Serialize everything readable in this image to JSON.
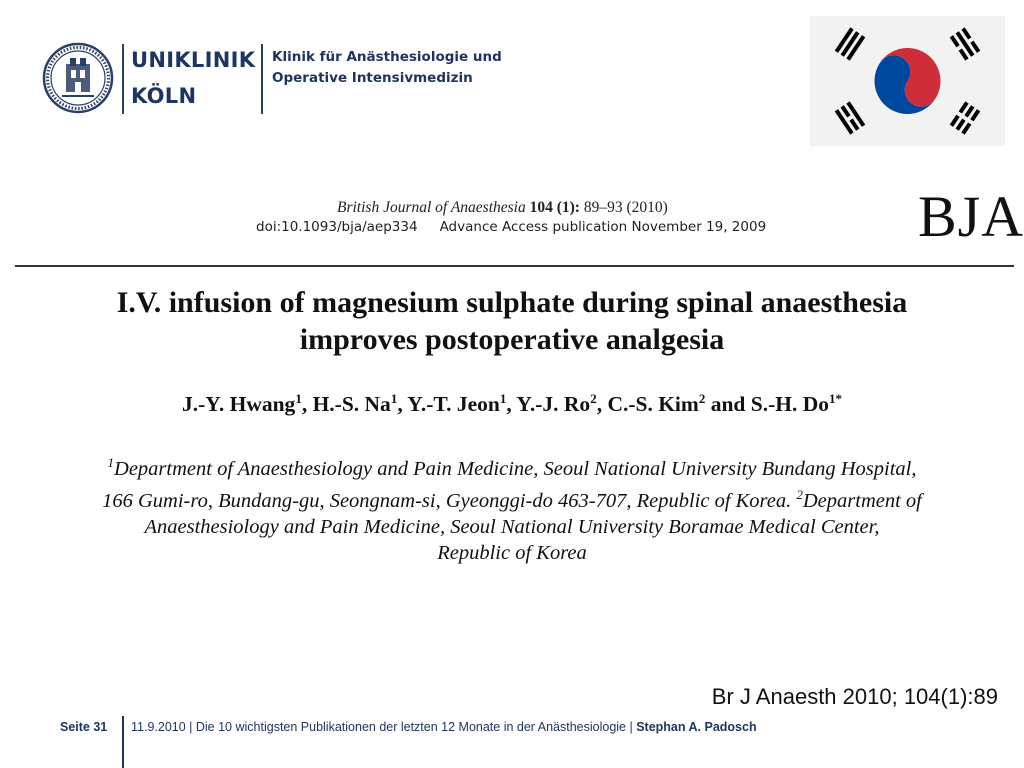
{
  "header": {
    "logo_line1": "UNIKLINIK",
    "logo_line2": "KÖLN",
    "clinic_line1": "Klinik für Anästhesiologie und",
    "clinic_line2": "Operative Intensivmedizin",
    "seal_icon": "university-seal-icon",
    "flag_icon": "south-korea-flag-icon"
  },
  "paper": {
    "journal_name": "British Journal of Anaesthesia",
    "journal_volume": "104 (1):",
    "journal_pages": "89–93 (2010)",
    "doi": "doi:10.1093/bja/aep334",
    "advance_access": "Advance Access publication November 19, 2009",
    "journal_logo": "BJA",
    "title_line1": "I.V. infusion of magnesium sulphate during spinal anaesthesia",
    "title_line2": "improves postoperative analgesia",
    "authors": [
      {
        "name": "J.-Y. Hwang",
        "sup": "1",
        "sep": ", "
      },
      {
        "name": "H.-S. Na",
        "sup": "1",
        "sep": ", "
      },
      {
        "name": "Y.-T. Jeon",
        "sup": "1",
        "sep": ", "
      },
      {
        "name": "Y.-J. Ro",
        "sup": "2",
        "sep": ", "
      },
      {
        "name": "C.-S. Kim",
        "sup": "2",
        "sep": " and "
      },
      {
        "name": "S.-H. Do",
        "sup": "1*",
        "sep": ""
      }
    ],
    "affil_sup1": "1",
    "affil_line1": "Department of Anaesthesiology and Pain Medicine, Seoul National University Bundang Hospital,",
    "affil_line2": "166 Gumi-ro, Bundang-gu, Seongnam-si, Gyeonggi-do 463-707, Republic of Korea.",
    "affil_sup2": "2",
    "affil_line2b": "Department of",
    "affil_line3": "Anaesthesiology and Pain Medicine, Seoul National University Boramae Medical Center,",
    "affil_line4": "Republic of Korea"
  },
  "citation": "Br J Anaesth 2010; 104(1):89",
  "footer": {
    "page_label": "Seite 31",
    "text": "11.9.2010 | Die 10 wichtigsten Publikationen der letzten 12 Monate in der Anästhesiologie | ",
    "author": "Stephan A. Padosch"
  },
  "colors": {
    "brand_navy": "#1f3561",
    "flag_red": "#cd2e3a",
    "flag_blue": "#0047a0"
  }
}
